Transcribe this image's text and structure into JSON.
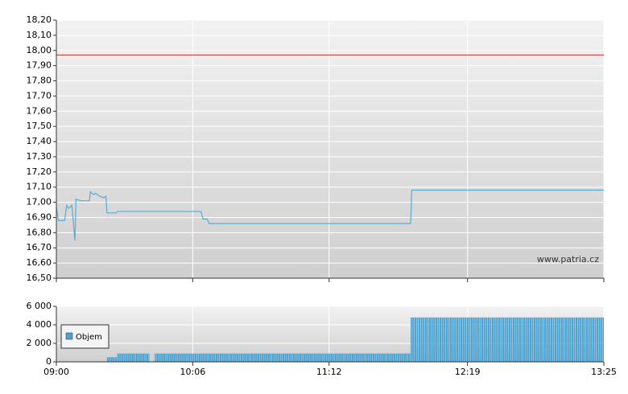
{
  "chart_data": [
    {
      "type": "line",
      "x": [
        540,
        541,
        544,
        545,
        546,
        547.5,
        549,
        549.5,
        552,
        556,
        556.5,
        558,
        559,
        561,
        563,
        564,
        564.5,
        569,
        569.5,
        610,
        611,
        613,
        614,
        711.5,
        712,
        805
      ],
      "values": [
        16.97,
        16.88,
        16.88,
        16.98,
        16.96,
        16.98,
        16.75,
        17.02,
        17.01,
        17.01,
        17.07,
        17.05,
        17.06,
        17.04,
        17.03,
        17.04,
        16.93,
        16.93,
        16.94,
        16.94,
        16.89,
        16.89,
        16.86,
        16.86,
        17.08,
        17.08
      ],
      "color": "#5aaad6",
      "reference_line": 17.97,
      "reference_color": "#d03030",
      "xlim": [
        540,
        805
      ],
      "xticks": [
        540,
        606,
        672,
        739,
        805
      ],
      "ylim": [
        16.5,
        18.2
      ],
      "yticks": [
        {
          "value": 16.5,
          "label": "16,50"
        },
        {
          "value": 16.6,
          "label": "16,60"
        },
        {
          "value": 16.7,
          "label": "16,70"
        },
        {
          "value": 16.8,
          "label": "16,80"
        },
        {
          "value": 16.9,
          "label": "16,90"
        },
        {
          "value": 17.0,
          "label": "17,00"
        },
        {
          "value": 17.1,
          "label": "17,10"
        },
        {
          "value": 17.2,
          "label": "17,20"
        },
        {
          "value": 17.3,
          "label": "17,30"
        },
        {
          "value": 17.4,
          "label": "17,40"
        },
        {
          "value": 17.5,
          "label": "17,50"
        },
        {
          "value": 17.6,
          "label": "17,60"
        },
        {
          "value": 17.7,
          "label": "17,70"
        },
        {
          "value": 17.8,
          "label": "17,80"
        },
        {
          "value": 17.9,
          "label": "17,90"
        },
        {
          "value": 18.0,
          "label": "18,00"
        },
        {
          "value": 18.1,
          "label": "18,10"
        },
        {
          "value": 18.2,
          "label": "18,20"
        }
      ],
      "grid": true,
      "annotation": "www.patria.cz"
    },
    {
      "type": "histogram",
      "series": [
        {
          "name": "Objem",
          "color": "#4aa3d3",
          "bins": [
            564.5,
            569.5,
            585,
            587.5,
            711.5,
            805
          ],
          "values": [
            500,
            900,
            null,
            900,
            4800
          ]
        }
      ],
      "xlim": [
        540,
        805
      ],
      "xticks": [
        {
          "value": 540,
          "label": "09:00"
        },
        {
          "value": 606,
          "label": "10:06"
        },
        {
          "value": 672,
          "label": "11:12"
        },
        {
          "value": 739,
          "label": "12:19"
        },
        {
          "value": 805,
          "label": "13:25"
        }
      ],
      "ylim": [
        0,
        6000
      ],
      "yticks": [
        0,
        {
          "value": 2000,
          "label": "2 000"
        },
        {
          "value": 4000,
          "label": "4 000"
        },
        {
          "value": 6000,
          "label": "6 000"
        }
      ],
      "grid": true,
      "legend": "lower-left"
    }
  ]
}
